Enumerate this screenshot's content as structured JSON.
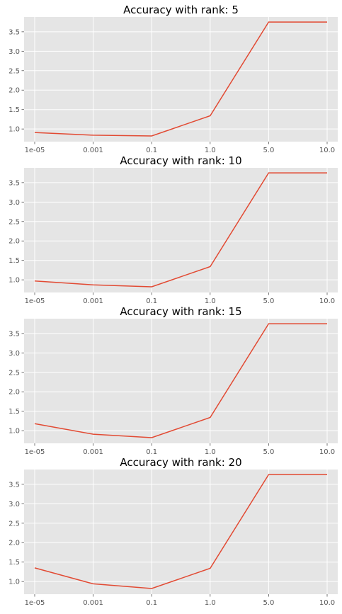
{
  "chart_data": [
    {
      "type": "line",
      "title": "Accuracy with rank: 5",
      "xlabel": "",
      "ylabel": "",
      "categories": [
        "1e-05",
        "0.001",
        "0.1",
        "1.0",
        "5.0",
        "10.0"
      ],
      "values": [
        0.91,
        0.84,
        0.82,
        1.34,
        3.75,
        3.75
      ],
      "yticks": [
        "1.0",
        "1.5",
        "2.0",
        "2.5",
        "3.0",
        "3.5"
      ],
      "ylim": [
        0.675,
        3.88
      ],
      "grid": true,
      "line_color": "#E24A33",
      "background": "#E5E5E5"
    },
    {
      "type": "line",
      "title": "Accuracy with rank: 10",
      "xlabel": "",
      "ylabel": "",
      "categories": [
        "1e-05",
        "0.001",
        "0.1",
        "1.0",
        "5.0",
        "10.0"
      ],
      "values": [
        0.97,
        0.87,
        0.82,
        1.34,
        3.75,
        3.75
      ],
      "yticks": [
        "1.0",
        "1.5",
        "2.0",
        "2.5",
        "3.0",
        "3.5"
      ],
      "ylim": [
        0.675,
        3.88
      ],
      "grid": true,
      "line_color": "#E24A33",
      "background": "#E5E5E5"
    },
    {
      "type": "line",
      "title": "Accuracy with rank: 15",
      "xlabel": "",
      "ylabel": "",
      "categories": [
        "1e-05",
        "0.001",
        "0.1",
        "1.0",
        "5.0",
        "10.0"
      ],
      "values": [
        1.18,
        0.91,
        0.82,
        1.34,
        3.75,
        3.75
      ],
      "yticks": [
        "1.0",
        "1.5",
        "2.0",
        "2.5",
        "3.0",
        "3.5"
      ],
      "ylim": [
        0.675,
        3.88
      ],
      "grid": true,
      "line_color": "#E24A33",
      "background": "#E5E5E5"
    },
    {
      "type": "line",
      "title": "Accuracy with rank: 20",
      "xlabel": "",
      "ylabel": "",
      "categories": [
        "1e-05",
        "0.001",
        "0.1",
        "1.0",
        "5.0",
        "10.0"
      ],
      "values": [
        1.35,
        0.94,
        0.82,
        1.34,
        3.75,
        3.75
      ],
      "yticks": [
        "1.0",
        "1.5",
        "2.0",
        "2.5",
        "3.0",
        "3.5"
      ],
      "ylim": [
        0.675,
        3.88
      ],
      "grid": true,
      "line_color": "#E24A33",
      "background": "#E5E5E5"
    }
  ]
}
